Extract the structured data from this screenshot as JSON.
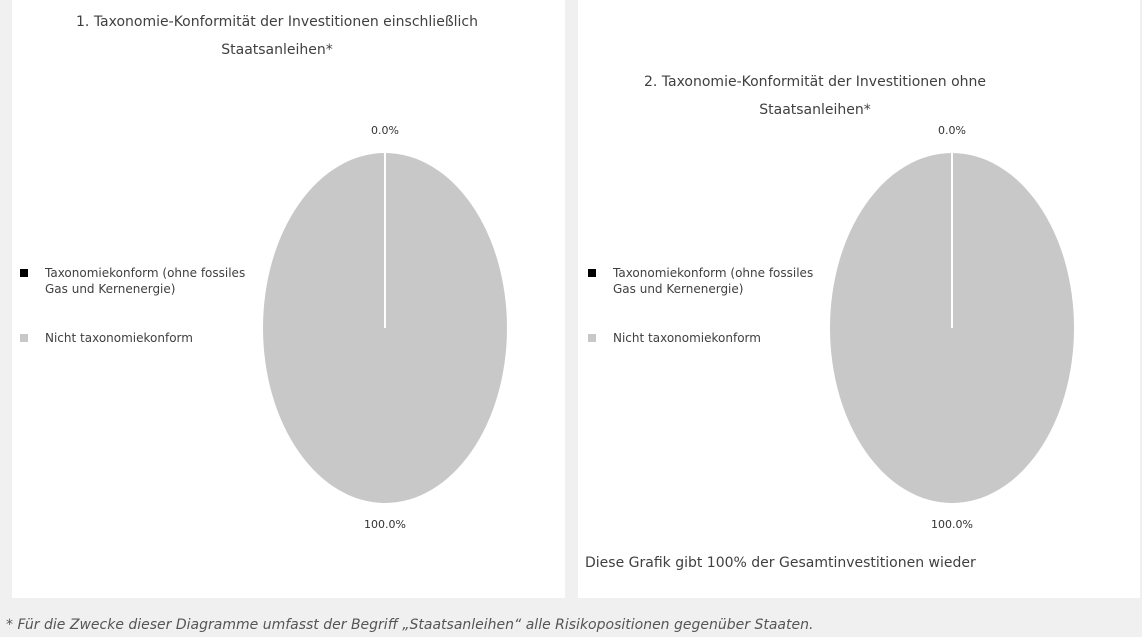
{
  "chart_data": [
    {
      "type": "pie",
      "title": "1. Taxonomie-Konformität der Investitionen einschließlich Staatsanleihen*",
      "categories": [
        "Taxonomiekonform (ohne fossiles Gas und Kernenergie)",
        "Nicht taxonomiekonform"
      ],
      "values": [
        0,
        100
      ],
      "value_labels": [
        "0.0%",
        "100.0%"
      ],
      "colors": [
        "#000000",
        "#c8c8c8"
      ]
    },
    {
      "type": "pie",
      "title": "2. Taxonomie-Konformität der Investitionen ohne Staatsanleihen*",
      "categories": [
        "Taxonomiekonform (ohne fossiles Gas und Kernenergie)",
        "Nicht taxonomiekonform"
      ],
      "values": [
        0,
        100
      ],
      "value_labels": [
        "0.0%",
        "100.0%"
      ],
      "colors": [
        "#000000",
        "#c8c8c8"
      ]
    }
  ],
  "note": "Diese Grafik gibt 100% der Gesamtinvestitionen wieder",
  "footnote": "* Für die Zwecke dieser Diagramme umfasst der Begriff „Staatsanleihen“ alle Risikopositionen gegenüber Staaten."
}
